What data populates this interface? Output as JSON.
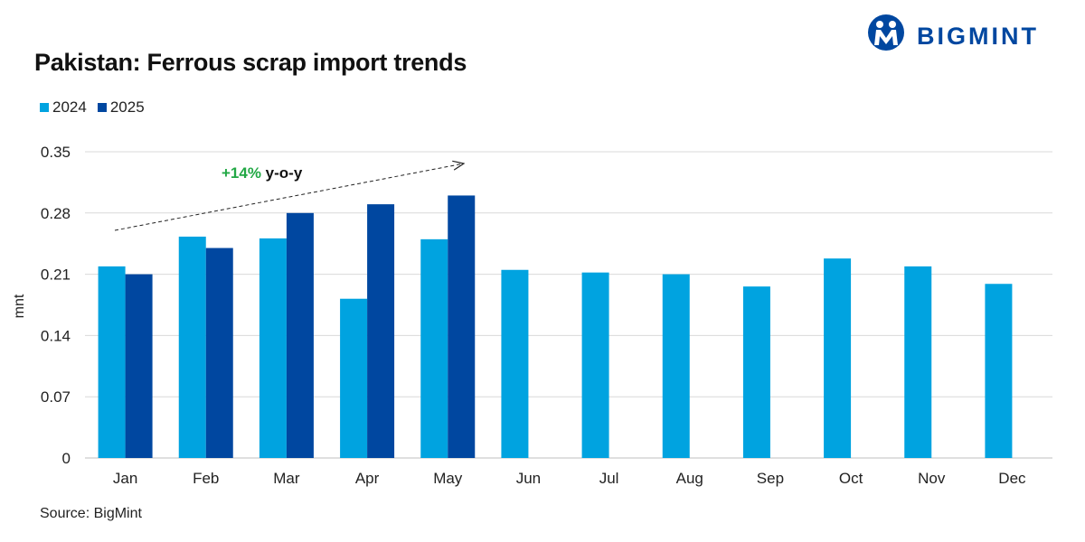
{
  "header": {
    "title": "Pakistan: Ferrous scrap import trends",
    "brand": "BIGMINT"
  },
  "source": "Source: BigMint",
  "colors": {
    "series_2024": "#00A3E0",
    "series_2025": "#0047A0",
    "grid": "#D9D9D9",
    "annotation_pct": "#22A845",
    "brand": "#0047A0"
  },
  "chart_data": {
    "type": "bar",
    "title": "Pakistan: Ferrous scrap import trends",
    "xlabel": "",
    "ylabel": "mnt",
    "ylim": [
      0,
      0.35
    ],
    "yticks": [
      "0",
      "0.07",
      "0.14",
      "0.21",
      "0.28",
      "0.35"
    ],
    "ytick_values": [
      0,
      0.07,
      0.14,
      0.21,
      0.28,
      0.35
    ],
    "grid": true,
    "legend_position": "top-left",
    "categories": [
      "Jan",
      "Feb",
      "Mar",
      "Apr",
      "May",
      "Jun",
      "Jul",
      "Aug",
      "Sep",
      "Oct",
      "Nov",
      "Dec"
    ],
    "series": [
      {
        "name": "2024",
        "values": [
          0.219,
          0.253,
          0.251,
          0.182,
          0.25,
          0.215,
          0.212,
          0.21,
          0.196,
          0.228,
          0.219,
          0.199
        ]
      },
      {
        "name": "2025",
        "values": [
          0.21,
          0.24,
          0.28,
          0.29,
          0.3,
          null,
          null,
          null,
          null,
          null,
          null,
          null
        ]
      }
    ],
    "annotation": {
      "pct": "+14%",
      "text": "y-o-y"
    }
  }
}
